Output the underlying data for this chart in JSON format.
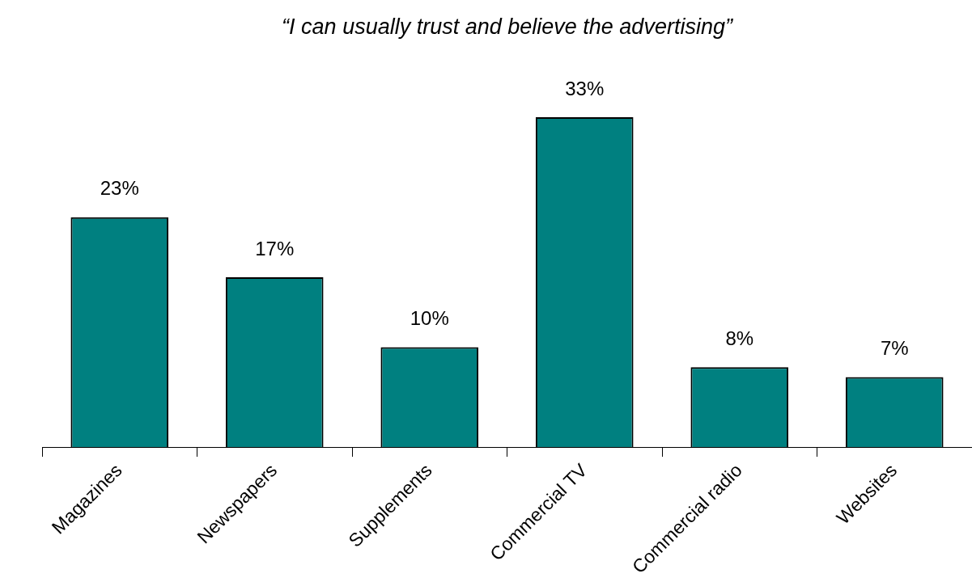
{
  "chart_data": {
    "type": "bar",
    "title": "“I can usually trust and believe the advertising”",
    "categories": [
      "Magazines",
      "Newspapers",
      "Supplements",
      "Commercial TV",
      "Commercial radio",
      "Websites"
    ],
    "values": [
      23,
      17,
      10,
      33,
      8,
      7
    ],
    "value_labels": [
      "23%",
      "17%",
      "10%",
      "33%",
      "8%",
      "7%"
    ],
    "color": "#008080",
    "grid": false,
    "legend": false
  }
}
